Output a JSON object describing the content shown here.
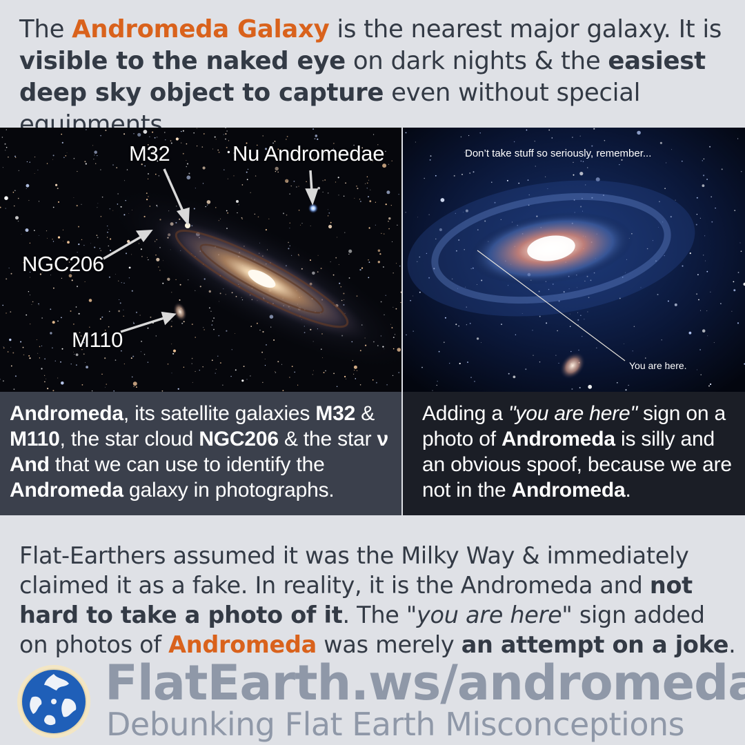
{
  "intro": {
    "t1": "The ",
    "h1": "Andromeda Galaxy",
    "t2": " is the nearest major galaxy. It is ",
    "b1": "visible to the naked eye",
    "t3": " on dark nights & the ",
    "b2": "easiest deep sky object to capture",
    "t4": " even without special equipments."
  },
  "left_panel": {
    "labels": {
      "m32": "M32",
      "nu_andromedae": "Nu Andromedae",
      "ngc206": "NGC206",
      "m110": "M110"
    },
    "caption": {
      "b1": "Andromeda",
      "t1": ", its satellite galaxies ",
      "b2": "M32",
      "t2": " & ",
      "b3": "M110",
      "t3": ", the star cloud ",
      "b4": "NGC206",
      "t4": " & the star ",
      "b5": "ν  And",
      "t5": " that we can use to identify the ",
      "b6": "Andromeda",
      "t6": " galaxy in photographs."
    }
  },
  "right_panel": {
    "top_text": "Don’t take stuff so seriously, remember...",
    "pointer_text": "You are here.",
    "caption": {
      "t1": "Adding a ",
      "i1": "\"you are here\"",
      "t2": " sign on a photo of ",
      "b1": "Andromeda",
      "t3": " is silly and an obvious spoof, because we are not in the ",
      "b2": "Andromeda",
      "t4": "."
    }
  },
  "outro": {
    "t1": "Flat-Earthers assumed it was the Milky Way & immediately claimed it as a fake. In reality, it is the Andromeda and ",
    "b1": "not hard to take a photo of it",
    "t2": ". The ",
    "i1": "\"you are here\"",
    "t3": " sign added on photos of ",
    "h1": "Andromeda",
    "t4": " was merely ",
    "b2": "an attempt on a joke",
    "t5": "."
  },
  "footer": {
    "site": "FlatEarth.ws/andromeda",
    "tagline": "Debunking Flat Earth Misconceptions",
    "logo_icon": "globe-icon"
  },
  "colors": {
    "background": "#dfe1e6",
    "text": "#333a45",
    "highlight": "#d9621c",
    "footer_text": "#8f98a8",
    "left_caption_bg": "#3b404c",
    "right_caption_bg": "#1b1e26"
  }
}
